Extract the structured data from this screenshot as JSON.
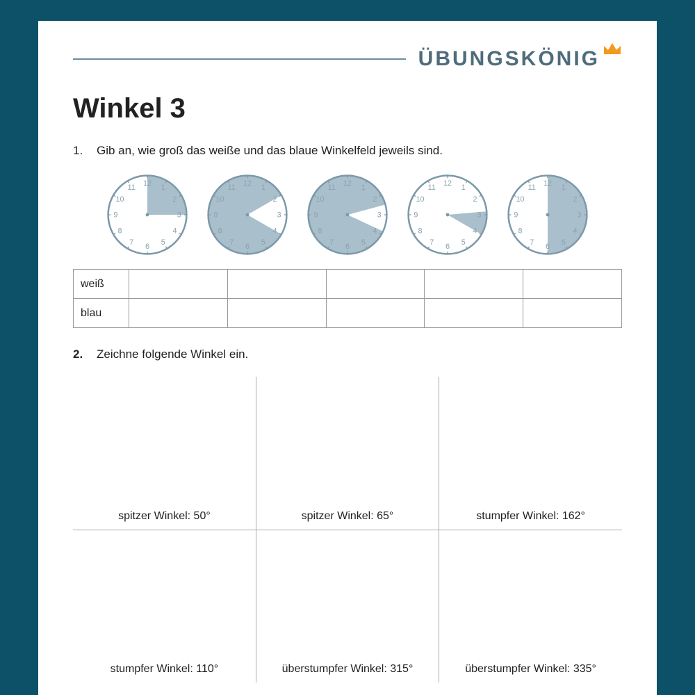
{
  "brand": {
    "name": "ÜBUNGSKÖNIG",
    "color": "#4f6c7c",
    "crown_color": "#f39a1e"
  },
  "title": "Winkel 3",
  "q1": {
    "num": "1.",
    "text": "Gib an, wie groß das weiße und das blaue Winkelfeld jeweils sind.",
    "rows": [
      "weiß",
      "blau"
    ]
  },
  "clocks": {
    "fill": "#a9bfcb",
    "stroke": "#7d99a9",
    "numcolor": "#8aa3b1",
    "items": [
      {
        "start": 0,
        "sweep": 90,
        "mode": "blue"
      },
      {
        "start": 60,
        "sweep": 60,
        "mode": "white"
      },
      {
        "start": 75,
        "sweep": 40,
        "mode": "white"
      },
      {
        "start": 85,
        "sweep": 35,
        "mode": "blue"
      },
      {
        "start": 0,
        "sweep": 180,
        "mode": "blue_right"
      }
    ]
  },
  "q2": {
    "num": "2.",
    "text": "Zeichne folgende Winkel ein.",
    "cells": [
      [
        "spitzer Winkel: 50°",
        "spitzer Winkel: 65°",
        "stumpfer Winkel: 162°"
      ],
      [
        "stumpfer Winkel: 110°",
        "überstumpfer Winkel: 315°",
        "überstumpfer Winkel: 335°"
      ]
    ]
  }
}
